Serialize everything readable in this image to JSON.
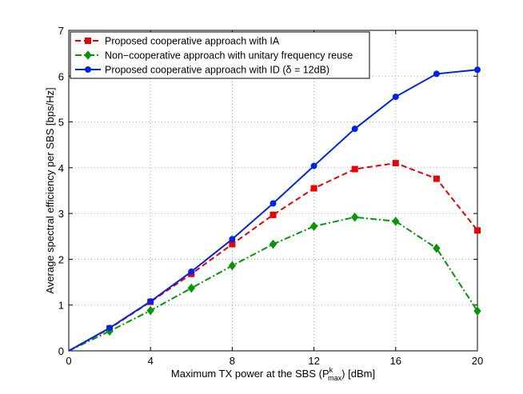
{
  "chart_data": {
    "type": "line",
    "title": "",
    "xlabel": "Maximum TX power at the SBS (P",
    "xlabel_sup": "k",
    "xlabel_sub": "max",
    "xlabel_suffix": ") [dBm]",
    "ylabel": "Average spectral efficiency per SBS [bps/Hz]",
    "xlim": [
      0,
      20
    ],
    "ylim": [
      0,
      7
    ],
    "xticks": [
      0,
      4,
      8,
      12,
      16,
      20
    ],
    "yticks": [
      0,
      1,
      2,
      3,
      4,
      5,
      6,
      7
    ],
    "grid": true,
    "legend_position": "top-left",
    "x": [
      0,
      2,
      4,
      6,
      8,
      10,
      12,
      14,
      16,
      18,
      20
    ],
    "series": [
      {
        "name": "Proposed cooperative approach with IA",
        "color": "#ee0000",
        "line_style": "dashed",
        "marker": "square",
        "values": [
          0,
          0.49,
          1.07,
          1.68,
          2.33,
          2.97,
          3.55,
          3.97,
          4.1,
          3.76,
          2.63
        ]
      },
      {
        "name": "Non−cooperative approach with unitary frequency reuse",
        "color": "#009900",
        "line_style": "dashdot",
        "marker": "diamond",
        "values": [
          0,
          0.43,
          0.88,
          1.37,
          1.86,
          2.33,
          2.72,
          2.92,
          2.83,
          2.24,
          0.87
        ]
      },
      {
        "name": "Proposed cooperative approach with ID (δ = 12dB)",
        "color": "#0022ee",
        "line_style": "solid",
        "marker": "circle",
        "values": [
          0,
          0.5,
          1.08,
          1.73,
          2.44,
          3.22,
          4.04,
          4.85,
          5.55,
          6.05,
          6.14
        ]
      }
    ]
  }
}
